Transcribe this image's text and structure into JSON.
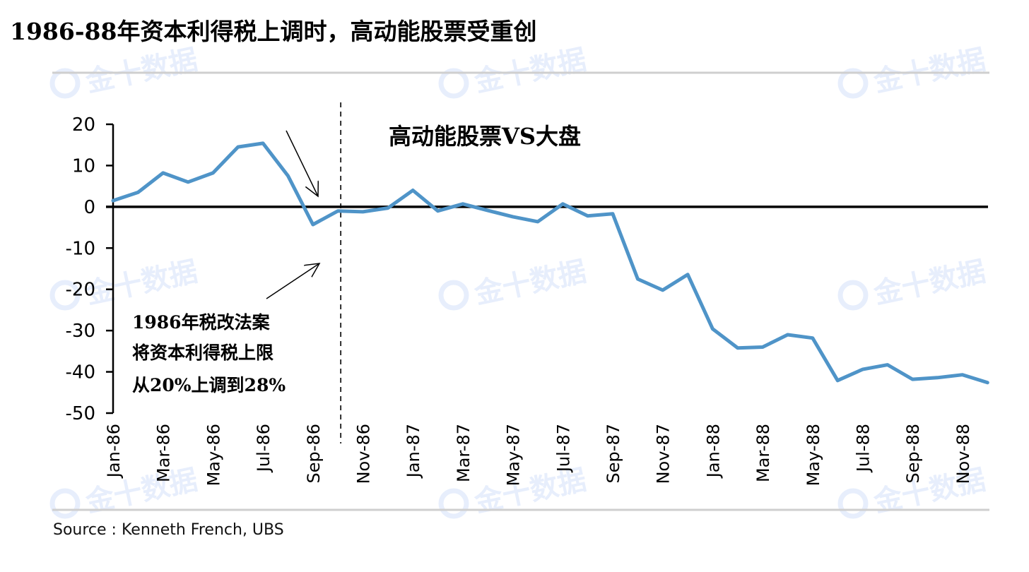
{
  "title": "1986-88年资本利得税上调时，高动能股票受重创",
  "source": "Source : Kenneth French, UBS",
  "watermark": "金十数据",
  "chart_data": {
    "type": "line",
    "title": "高动能股票VS大盘",
    "xlabel": "",
    "ylabel": "",
    "ylim": [
      -50,
      20
    ],
    "yticks": [
      20,
      10,
      0,
      -10,
      -20,
      -30,
      -40,
      -50
    ],
    "grid": false,
    "x": [
      "Jan-86",
      "Feb-86",
      "Mar-86",
      "Apr-86",
      "May-86",
      "Jun-86",
      "Jul-86",
      "Aug-86",
      "Sep-86",
      "Oct-86",
      "Nov-86",
      "Dec-86",
      "Jan-87",
      "Feb-87",
      "Mar-87",
      "Apr-87",
      "May-87",
      "Jun-87",
      "Jul-87",
      "Aug-87",
      "Sep-87",
      "Oct-87",
      "Nov-87",
      "Dec-87",
      "Jan-88",
      "Feb-88",
      "Mar-88",
      "Apr-88",
      "May-88",
      "Jun-88",
      "Jul-88",
      "Aug-88",
      "Sep-88",
      "Oct-88",
      "Nov-88",
      "Dec-88"
    ],
    "xtick_labels": [
      "Jan-86",
      "Mar-86",
      "May-86",
      "Jul-86",
      "Sep-86",
      "Nov-86",
      "Jan-87",
      "Mar-87",
      "May-87",
      "Jul-87",
      "Sep-87",
      "Nov-87",
      "Jan-88",
      "Mar-88",
      "May-88",
      "Jul-88",
      "Sep-88",
      "Nov-88"
    ],
    "series": [
      {
        "color": "#4f94c8",
        "values": [
          1.5,
          3.5,
          8.2,
          6.0,
          8.2,
          14.5,
          15.4,
          7.5,
          -4.3,
          -1.0,
          -1.2,
          -0.3,
          4.0,
          -1.0,
          0.7,
          -0.9,
          -2.4,
          -3.6,
          0.7,
          -2.2,
          -1.7,
          -17.5,
          -20.2,
          -16.4,
          -29.6,
          -34.2,
          -34.0,
          -31.0,
          -31.8,
          -42.1,
          -39.4,
          -38.3,
          -41.8,
          -41.4,
          -40.7,
          -42.6
        ]
      }
    ],
    "reference_line": {
      "x": "Oct-86",
      "style": "dashed"
    },
    "annotation": {
      "lines": [
        "1986年税改法案",
        "将资本利得税上限",
        "从20%上调到28%"
      ],
      "arrow_targets": [
        "Sep-86"
      ]
    }
  }
}
